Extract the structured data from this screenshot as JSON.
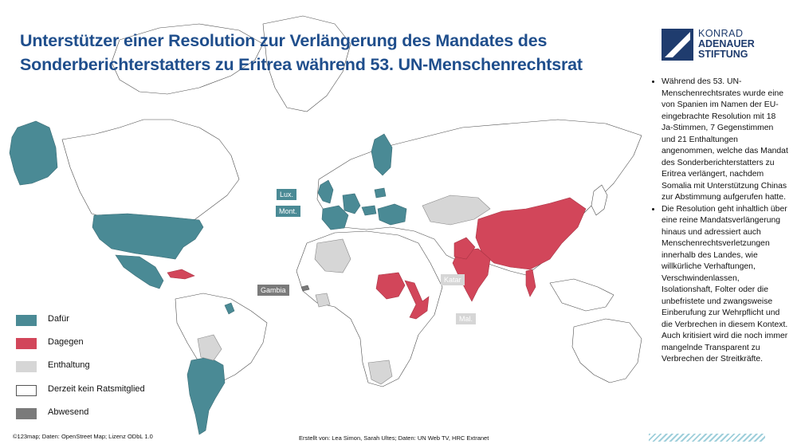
{
  "title": {
    "line1": "Unterstützer einer Resolution zur Verlängerung des Mandates des",
    "line2": "Sonderberichterstatters zu Eritrea während 53. UN-Menschenrechtsrat"
  },
  "logo": {
    "line1": "KONRAD",
    "line2": "ADENAUER",
    "line3": "STIFTUNG"
  },
  "sidebar": {
    "bullets": [
      "Während des 53. UN-Menschenrechtsrates wurde eine von Spanien im Namen der EU-eingebrachte Resolution mit 18 Ja-Stimmen, 7 Gegenstimmen und 21 Enthaltungen angenommen, welche das Mandat des Sonderberichterstatters zu Eritrea verlängert, nachdem Somalia mit Unterstützung Chinas zur Abstimmung aufgerufen hatte.",
      "Die Resolution geht inhaltlich über eine reine Mandatsverlängerung hinaus und adressiert auch Menschenrechtsverletzungen innerhalb des Landes, wie willkürliche Verhaftungen, Verschwindenlassen, Isolationshaft, Folter oder die unbefristete und zwangsweise Einberufung zur Wehrpflicht und die Verbrechen in diesem Kontext. Auch kritisiert wird die noch immer mangelnde Transparent zu Verbrechen der Streitkräfte."
    ]
  },
  "legend": {
    "items": [
      {
        "label": "Dafür",
        "color": "#4a8a95"
      },
      {
        "label": "Dagegen",
        "color": "#d2465a"
      },
      {
        "label": "Enthaltung",
        "color": "#d6d6d6"
      },
      {
        "label": "Derzeit kein Ratsmitglied",
        "color": "#ffffff"
      },
      {
        "label": "Abwesend",
        "color": "#7a7a7a"
      }
    ]
  },
  "map_labels": {
    "lux": "Lux.",
    "mont": "Mont.",
    "gambia": "Gambia",
    "katar": "Katar",
    "mal": "Mal."
  },
  "colors": {
    "favor": "#4a8a95",
    "against": "#d2465a",
    "abstain": "#d6d6d6",
    "absent": "#7a7a7a",
    "nonmember": "#ffffff",
    "title": "#1f4e8c"
  },
  "credits": {
    "left": "©123map; Daten: OpenStreet Map; Lizenz ODbL 1.0",
    "middle": "Erstellt von: Lea Simon, Sarah Ultes; Daten: UN Web TV, HRC Extranet"
  }
}
